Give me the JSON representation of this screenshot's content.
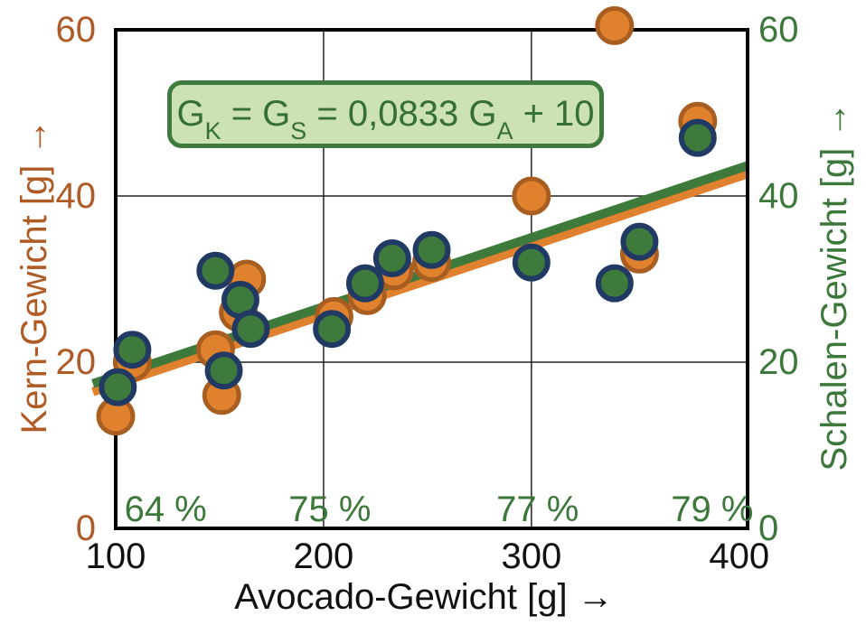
{
  "chart_data": {
    "type": "scatter",
    "title_formula": "GK = GS = 0,0833 GA + 10",
    "formula_parts": {
      "p1": "G",
      "sub1": "K",
      "p2": " = G",
      "sub2": "S",
      "p3": " = 0,0833 G",
      "sub3": "A",
      "p4": " + 10"
    },
    "axes": {
      "x": {
        "label": "Avocado-Gewicht [g] →",
        "ticks": [
          100,
          200,
          300,
          400
        ],
        "range": [
          100,
          404
        ],
        "gridlines": [
          200,
          300
        ],
        "color": "#111111"
      },
      "y_left": {
        "label": "Kern-Gewicht [g] →",
        "ticks": [
          0,
          20,
          40,
          60
        ],
        "range": [
          0,
          60
        ],
        "gridlines": [
          20,
          40
        ],
        "color": "#AE5B25"
      },
      "y_right": {
        "label": "Schalen-Gewicht [g] →",
        "ticks": [
          0,
          20,
          40,
          60
        ],
        "range": [
          0,
          60
        ],
        "color": "#3C783A"
      }
    },
    "percent_labels": [
      {
        "text": "64 %",
        "x": 124
      },
      {
        "text": "75 %",
        "x": 203
      },
      {
        "text": "77 %",
        "x": 303
      },
      {
        "text": "79 %",
        "x": 387
      }
    ],
    "trendline": {
      "slope": 0.0833,
      "intercept": 10,
      "x_start": 89,
      "x_end": 404,
      "green_color": "#3E7A3C",
      "orange_color": "#E0812E"
    },
    "series": [
      {
        "name": "Kern-Gewicht",
        "marker": "circle",
        "fill": "#E0812E",
        "stroke": "#A85E20",
        "points": [
          [
            100,
            13.5
          ],
          [
            108,
            20
          ],
          [
            148,
            21.5
          ],
          [
            151,
            16
          ],
          [
            159,
            26
          ],
          [
            163,
            30
          ],
          [
            205,
            25.5
          ],
          [
            221,
            28
          ],
          [
            234,
            31
          ],
          [
            252,
            32
          ],
          [
            300,
            40
          ],
          [
            340,
            60.5
          ],
          [
            352,
            33
          ],
          [
            380,
            49
          ]
        ]
      },
      {
        "name": "Schalen-Gewicht",
        "marker": "circle",
        "fill": "#3E7A3C",
        "stroke": "#203A64",
        "points": [
          [
            101,
            17
          ],
          [
            108,
            21.5
          ],
          [
            148,
            31
          ],
          [
            152,
            19
          ],
          [
            160,
            27.5
          ],
          [
            165,
            24
          ],
          [
            204,
            24
          ],
          [
            220,
            29.5
          ],
          [
            233,
            32.5
          ],
          [
            252,
            33.5
          ],
          [
            300,
            32
          ],
          [
            340,
            29.5
          ],
          [
            352,
            34.5
          ],
          [
            380,
            47
          ]
        ]
      }
    ],
    "formula_box": {
      "fill": "#CDE2B4",
      "border": "#3E7A3C",
      "text_color": "#356F33"
    },
    "frame": {
      "color": "#000000",
      "grid_color": "#222222"
    }
  }
}
